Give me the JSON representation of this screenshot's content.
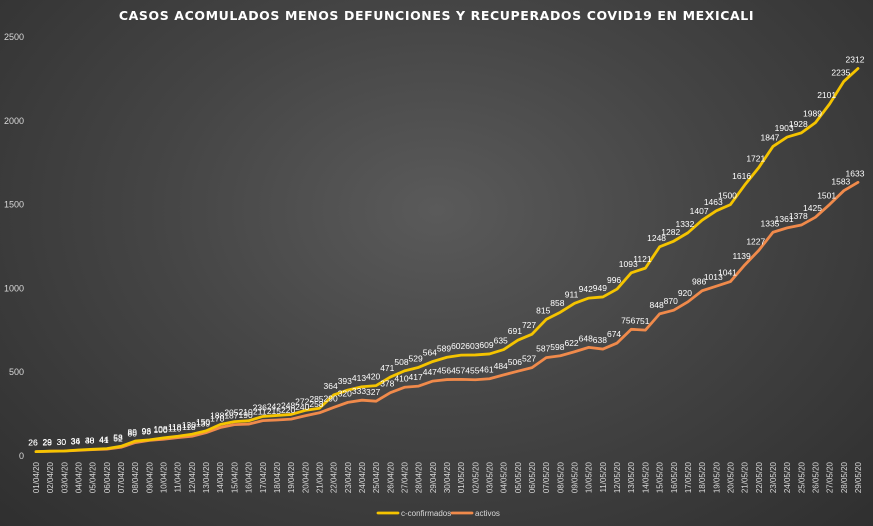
{
  "chart_data": {
    "type": "line",
    "title": "CASOS ACOMULADOS  MENOS DEFUNCIONES Y RECUPERADOS COVID19  EN MEXICALI",
    "xlabel": "",
    "ylabel": "",
    "ylim": [
      0,
      2500
    ],
    "yticks": [
      0,
      500,
      1000,
      1500,
      2000,
      2500
    ],
    "grid": false,
    "legend_position": "bottom",
    "x": [
      "01/04/20",
      "02/04/20",
      "03/04/20",
      "04/04/20",
      "05/04/20",
      "06/04/20",
      "07/04/20",
      "08/04/20",
      "09/04/20",
      "10/04/20",
      "11/04/20",
      "12/04/20",
      "13/04/20",
      "14/04/20",
      "15/04/20",
      "16/04/20",
      "17/04/20",
      "18/04/20",
      "19/04/20",
      "20/04/20",
      "21/04/20",
      "22/04/20",
      "23/04/20",
      "24/04/20",
      "25/04/20",
      "26/04/20",
      "27/04/20",
      "28/04/20",
      "29/04/20",
      "30/04/20",
      "01/05/20",
      "02/05/20",
      "03/05/20",
      "04/05/20",
      "05/05/20",
      "06/05/20",
      "07/05/20",
      "08/05/20",
      "09/05/20",
      "10/05/20",
      "11/05/20",
      "12/05/20",
      "13/05/20",
      "14/05/20",
      "15/05/20",
      "16/05/20",
      "17/05/20",
      "18/05/20",
      "19/05/20",
      "20/05/20",
      "21/05/20",
      "22/05/20",
      "23/05/20",
      "24/05/20",
      "25/05/20",
      "26/05/20",
      "27/05/20",
      "28/05/20",
      "29/05/20"
    ],
    "series": [
      {
        "name": "c-confirmados",
        "color": "#f5c400",
        "values": [
          26,
          29,
          30,
          36,
          40,
          44,
          58,
          89,
          96,
          108,
          118,
          130,
          150,
          188,
          205,
          210,
          236,
          242,
          248,
          272,
          285,
          364,
          393,
          413,
          420,
          471,
          508,
          529,
          564,
          589,
          602,
          603,
          609,
          635,
          691,
          727,
          815,
          858,
          911,
          942,
          949,
          996,
          1093,
          1121,
          1248,
          1282,
          1332,
          1407,
          1463,
          1500,
          1616,
          1721,
          1847,
          1903,
          1928,
          1989,
          2101,
          2235,
          2312
        ]
      },
      {
        "name": "activos",
        "color": "#f08a4b",
        "values": [
          26,
          28,
          30,
          34,
          38,
          41,
          52,
          80,
          93,
          100,
          110,
          118,
          139,
          170,
          187,
          190,
          211,
          215,
          220,
          240,
          258,
          290,
          320,
          333,
          327,
          378,
          410,
          417,
          447,
          456,
          457,
          455,
          461,
          484,
          506,
          527,
          587,
          598,
          622,
          648,
          638,
          674,
          756,
          751,
          848,
          870,
          920,
          986,
          1013,
          1041,
          1139,
          1227,
          1335,
          1361,
          1378,
          1425,
          1501,
          1583,
          1633
        ]
      }
    ]
  }
}
